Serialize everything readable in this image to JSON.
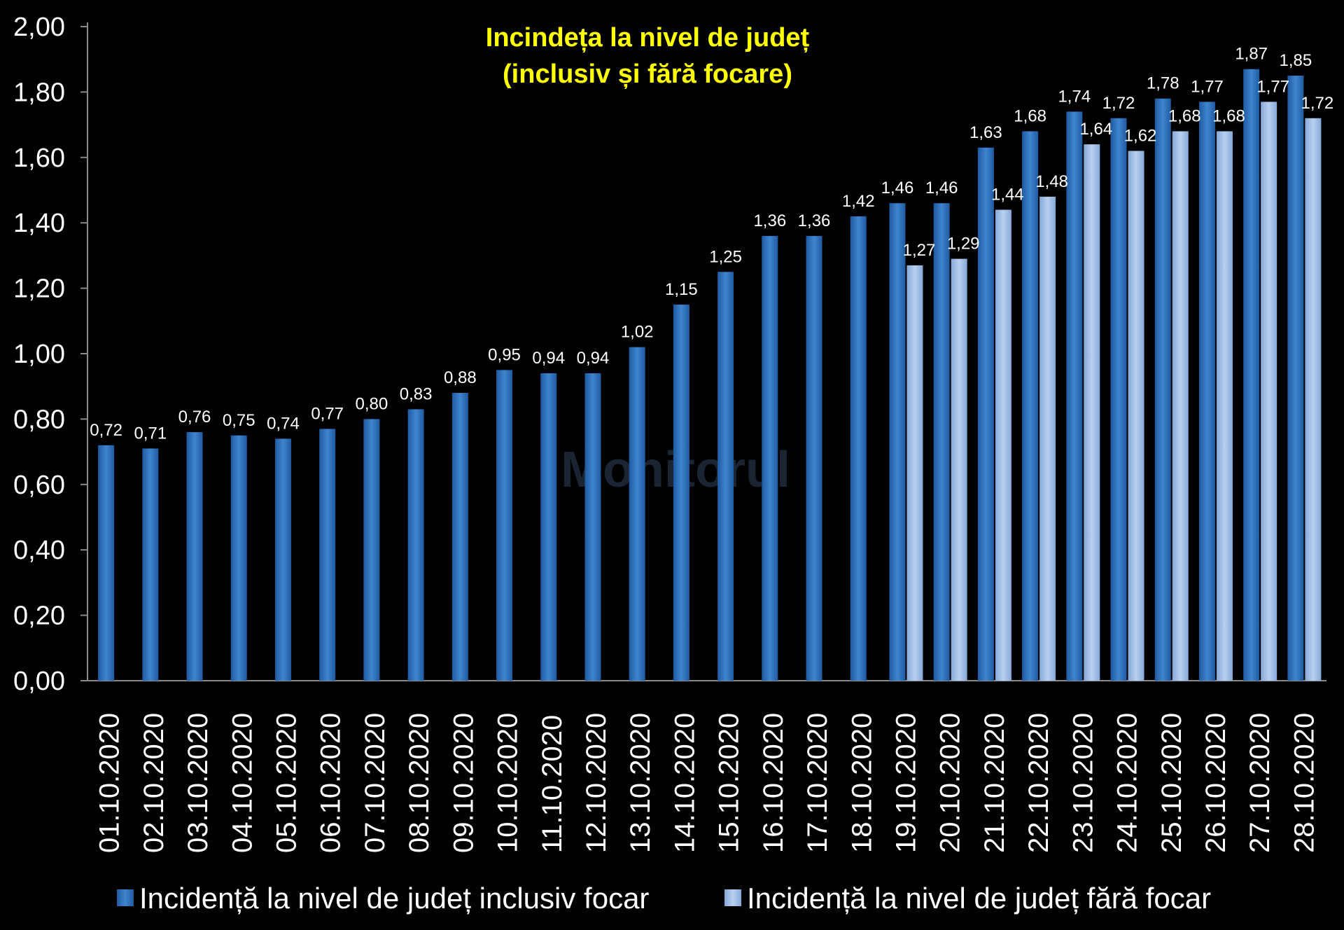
{
  "chart_data": {
    "type": "bar",
    "title_lines": [
      "Incindeța la nivel de județ",
      "(inclusiv și fără focare)"
    ],
    "watermark": "Monitorul",
    "xlabel": "",
    "ylabel": "",
    "ylim": [
      0,
      2.0
    ],
    "yticks": [
      "0,00",
      "0,20",
      "0,40",
      "0,60",
      "0,80",
      "1,00",
      "1,20",
      "1,40",
      "1,60",
      "1,80",
      "2,00"
    ],
    "ytick_values": [
      0,
      0.2,
      0.4,
      0.6,
      0.8,
      1.0,
      1.2,
      1.4,
      1.6,
      1.8,
      2.0
    ],
    "grid": false,
    "legend_position": "bottom",
    "categories": [
      "01.10.2020",
      "02.10.2020",
      "03.10.2020",
      "04.10.2020",
      "05.10.2020",
      "06.10.2020",
      "07.10.2020",
      "08.10.2020",
      "09.10.2020",
      "10.10.2020",
      "11.10.2020",
      "12.10.2020",
      "13.10.2020",
      "14.10.2020",
      "15.10.2020",
      "16.10.2020",
      "17.10.2020",
      "18.10.2020",
      "19.10.2020",
      "20.10.2020",
      "21.10.2020",
      "22.10.2020",
      "23.10.2020",
      "24.10.2020",
      "25.10.2020",
      "26.10.2020",
      "27.10.2020",
      "28.10.2020"
    ],
    "series": [
      {
        "name": "Incidență la nivel de județ inclusiv focar",
        "color": "#2e6fb8",
        "values": [
          0.72,
          0.71,
          0.76,
          0.75,
          0.74,
          0.77,
          0.8,
          0.83,
          0.88,
          0.95,
          0.94,
          0.94,
          1.02,
          1.15,
          1.25,
          1.36,
          1.36,
          1.42,
          1.46,
          1.46,
          1.63,
          1.68,
          1.74,
          1.72,
          1.78,
          1.77,
          1.87,
          1.85
        ],
        "labels": [
          "0,72",
          "0,71",
          "0,76",
          "0,75",
          "0,74",
          "0,77",
          "0,80",
          "0,83",
          "0,88",
          "0,95",
          "0,94",
          "0,94",
          "1,02",
          "1,15",
          "1,25",
          "1,36",
          "1,36",
          "1,42",
          "1,46",
          "1,46",
          "1,63",
          "1,68",
          "1,74",
          "1,72",
          "1,78",
          "1,77",
          "1,87",
          "1,85"
        ]
      },
      {
        "name": "Incidență la nivel de județ fără focar",
        "color": "#9cbbe6",
        "values": [
          null,
          null,
          null,
          null,
          null,
          null,
          null,
          null,
          null,
          null,
          null,
          null,
          null,
          null,
          null,
          null,
          null,
          null,
          1.27,
          1.29,
          1.44,
          1.48,
          1.64,
          1.62,
          1.68,
          1.68,
          1.77,
          1.72
        ],
        "labels": [
          null,
          null,
          null,
          null,
          null,
          null,
          null,
          null,
          null,
          null,
          null,
          null,
          null,
          null,
          null,
          null,
          null,
          null,
          "1,27",
          "1,29",
          "1,44",
          "1,48",
          "1,64",
          "1,62",
          "1,68",
          "1,68",
          "1,77",
          "1,72"
        ]
      }
    ]
  }
}
